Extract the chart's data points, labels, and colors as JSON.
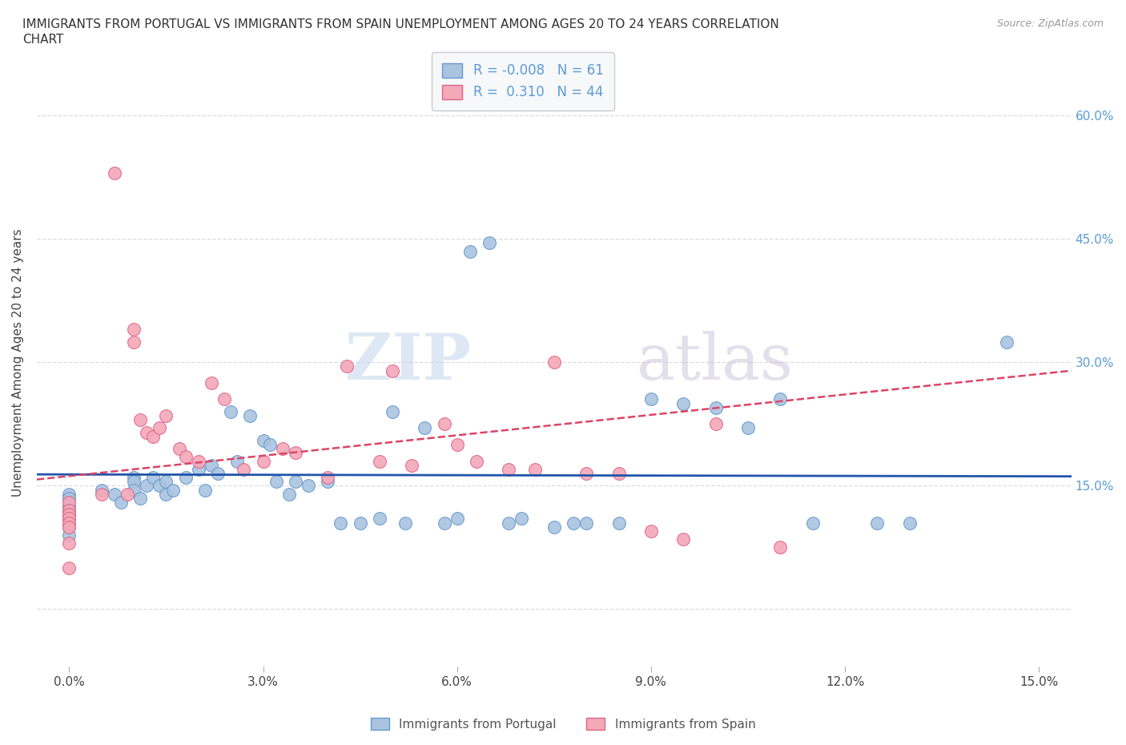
{
  "title_line1": "IMMIGRANTS FROM PORTUGAL VS IMMIGRANTS FROM SPAIN UNEMPLOYMENT AMONG AGES 20 TO 24 YEARS CORRELATION",
  "title_line2": "CHART",
  "source": "Source: ZipAtlas.com",
  "ylabel": "Unemployment Among Ages 20 to 24 years",
  "x_ticks": [
    0.0,
    3.0,
    6.0,
    9.0,
    12.0,
    15.0
  ],
  "x_tick_labels": [
    "0.0%",
    "3.0%",
    "6.0%",
    "9.0%",
    "12.0%",
    "15.0%"
  ],
  "y_ticks": [
    0.0,
    15.0,
    30.0,
    45.0,
    60.0
  ],
  "y_tick_labels_right": [
    "",
    "15.0%",
    "30.0%",
    "45.0%",
    "60.0%"
  ],
  "xlim": [
    -0.5,
    15.5
  ],
  "ylim": [
    -7,
    67
  ],
  "portugal_color": "#aac4e0",
  "spain_color": "#f4a8b8",
  "portugal_edge": "#6699cc",
  "spain_edge": "#dd6688",
  "trendline_portugal_color": "#2255aa",
  "trendline_spain_color": "#dd4466",
  "portugal_R": -0.008,
  "portugal_N": 61,
  "spain_R": 0.31,
  "spain_N": 44,
  "watermark_zip": "ZIP",
  "watermark_atlas": "atlas",
  "background_color": "#ffffff",
  "grid_color": "#dddddd",
  "portugal_x": [
    0.0,
    0.0,
    0.0,
    0.0,
    0.0,
    0.0,
    0.0,
    0.0,
    0.5,
    0.7,
    0.8,
    1.0,
    1.0,
    1.0,
    1.1,
    1.2,
    1.3,
    1.4,
    1.5,
    1.5,
    1.6,
    1.8,
    2.0,
    2.1,
    2.2,
    2.3,
    2.5,
    2.6,
    2.8,
    3.0,
    3.1,
    3.2,
    3.4,
    3.5,
    3.7,
    4.0,
    4.2,
    4.5,
    4.8,
    5.0,
    5.2,
    5.5,
    5.8,
    6.0,
    6.2,
    6.5,
    6.8,
    7.0,
    7.5,
    7.8,
    8.0,
    8.5,
    9.0,
    9.5,
    10.0,
    10.5,
    11.0,
    11.5,
    12.5,
    13.0,
    14.5
  ],
  "portugal_y": [
    14.0,
    13.5,
    12.5,
    12.0,
    11.5,
    11.0,
    10.0,
    9.0,
    14.5,
    14.0,
    13.0,
    16.0,
    15.5,
    14.5,
    13.5,
    15.0,
    16.0,
    15.0,
    15.5,
    14.0,
    14.5,
    16.0,
    17.0,
    14.5,
    17.5,
    16.5,
    24.0,
    18.0,
    23.5,
    20.5,
    20.0,
    15.5,
    14.0,
    15.5,
    15.0,
    15.5,
    10.5,
    10.5,
    11.0,
    24.0,
    10.5,
    22.0,
    10.5,
    11.0,
    43.5,
    44.5,
    10.5,
    11.0,
    10.0,
    10.5,
    10.5,
    10.5,
    25.5,
    25.0,
    24.5,
    22.0,
    25.5,
    10.5,
    10.5,
    10.5,
    32.5
  ],
  "spain_x": [
    0.0,
    0.0,
    0.0,
    0.0,
    0.0,
    0.0,
    0.0,
    0.0,
    0.5,
    0.7,
    0.9,
    1.0,
    1.0,
    1.1,
    1.2,
    1.3,
    1.4,
    1.5,
    1.7,
    1.8,
    2.0,
    2.2,
    2.4,
    2.7,
    3.0,
    3.3,
    3.5,
    4.0,
    4.3,
    4.8,
    5.0,
    5.3,
    5.8,
    6.0,
    6.3,
    6.8,
    7.2,
    7.5,
    8.0,
    8.5,
    9.0,
    9.5,
    10.0,
    11.0
  ],
  "spain_y": [
    13.0,
    12.0,
    11.5,
    11.0,
    10.5,
    10.0,
    8.0,
    5.0,
    14.0,
    53.0,
    14.0,
    34.0,
    32.5,
    23.0,
    21.5,
    21.0,
    22.0,
    23.5,
    19.5,
    18.5,
    18.0,
    27.5,
    25.5,
    17.0,
    18.0,
    19.5,
    19.0,
    16.0,
    29.5,
    18.0,
    29.0,
    17.5,
    22.5,
    20.0,
    18.0,
    17.0,
    17.0,
    30.0,
    16.5,
    16.5,
    9.5,
    8.5,
    22.5,
    7.5
  ]
}
